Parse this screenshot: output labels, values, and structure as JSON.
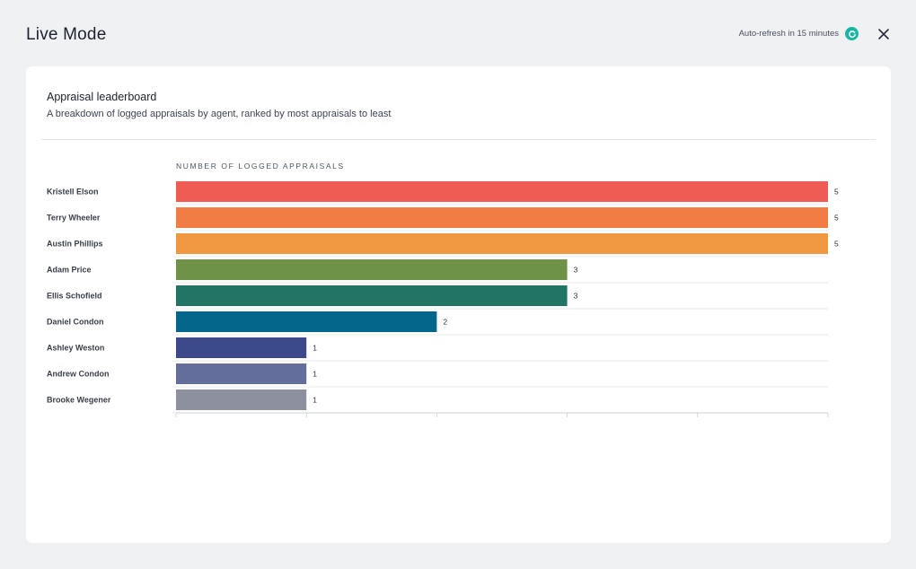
{
  "header": {
    "title": "Live Mode",
    "refresh_text": "Auto-refresh in 15 minutes",
    "refresh_icon": "refresh-icon",
    "close_icon": "close-icon",
    "accent_color": "#19b6a3"
  },
  "card": {
    "title": "Appraisal leaderboard",
    "subtitle": "A breakdown of logged appraisals by agent, ranked by most appraisals to least"
  },
  "chart_data": {
    "type": "bar",
    "orientation": "horizontal",
    "title": "",
    "xlabel": "NUMBER OF LOGGED APPRAISALS",
    "ylabel": "",
    "xlim": [
      0,
      5
    ],
    "grid": true,
    "categories": [
      "Kristell Elson",
      "Terry Wheeler",
      "Austin Phillips",
      "Adam Price",
      "Ellis Schofield",
      "Daniel Condon",
      "Ashley Weston",
      "Andrew Condon",
      "Brooke Wegener"
    ],
    "values": [
      5,
      5,
      5,
      3,
      3,
      2,
      1,
      1,
      1
    ],
    "colors": [
      "#ef5c53",
      "#f17c44",
      "#ef983f",
      "#6e9346",
      "#227565",
      "#03668a",
      "#3c4a8c",
      "#636e9a",
      "#8d909e"
    ]
  }
}
